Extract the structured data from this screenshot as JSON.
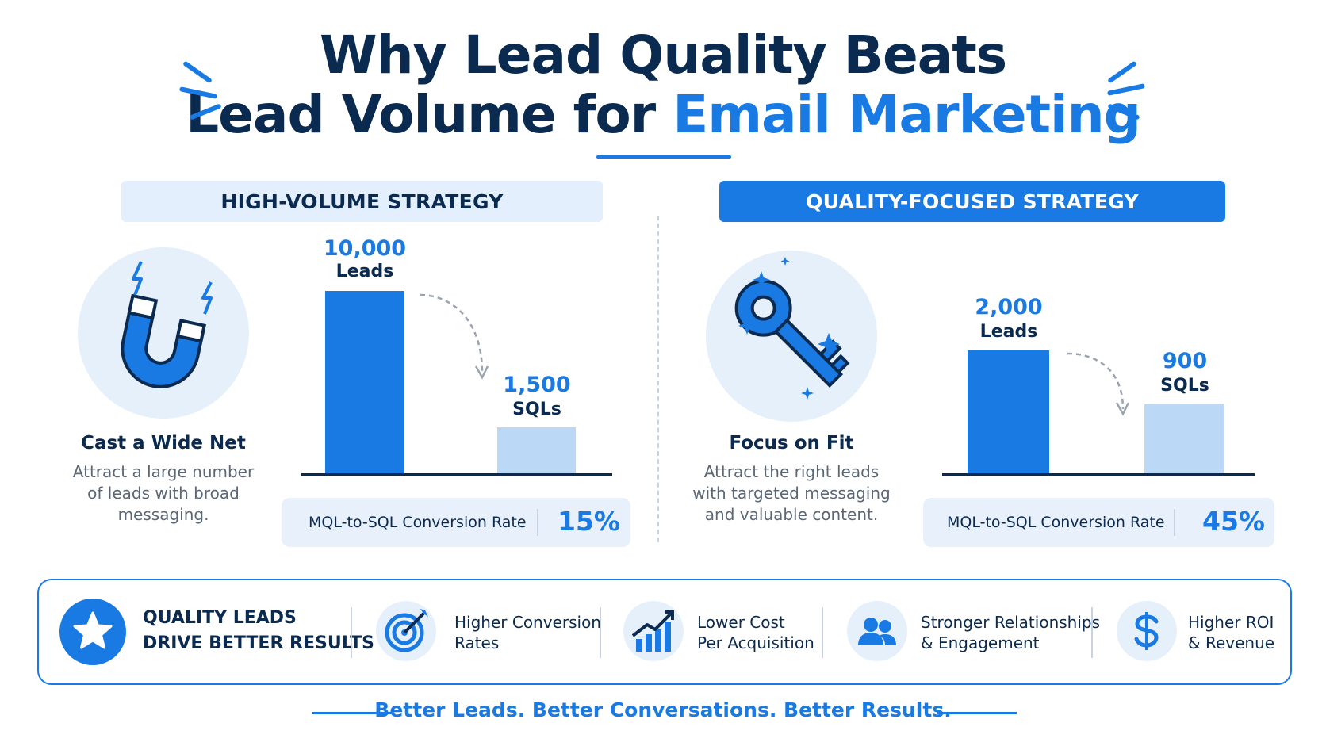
{
  "title": {
    "line1": "Why Lead Quality Beats",
    "line2_prefix": "Lead Volume for ",
    "line2_accent": "Email Marketing"
  },
  "high_volume": {
    "header": "HIGH-VOLUME STRATEGY",
    "icon": "magnet-icon",
    "feature_title": "Cast a Wide Net",
    "feature_desc": [
      "Attract a large number",
      "of leads with broad",
      "messaging."
    ],
    "leads_value": "10,000",
    "leads_label": "Leads",
    "sqls_value": "1,500",
    "sqls_label": "SQLs",
    "conversion_label": "MQL-to-SQL Conversion Rate",
    "conversion_value": "15%"
  },
  "quality_focused": {
    "header": "QUALITY-FOCUSED STRATEGY",
    "icon": "key-icon",
    "feature_title": "Focus on Fit",
    "feature_desc": [
      "Attract the right leads",
      "with targeted messaging",
      "and valuable content."
    ],
    "leads_value": "2,000",
    "leads_label": "Leads",
    "sqls_value": "900",
    "sqls_label": "SQLs",
    "conversion_label": "MQL-to-SQL Conversion Rate",
    "conversion_value": "45%"
  },
  "banner": {
    "main_line1": "QUALITY LEADS",
    "main_line2": "DRIVE BETTER RESULTS",
    "main_icon": "star-icon",
    "items": [
      {
        "icon": "target-icon",
        "line1": "Higher Conversion",
        "line2": "Rates"
      },
      {
        "icon": "growth-chart-icon",
        "line1": "Lower Cost",
        "line2": "Per Acquisition"
      },
      {
        "icon": "people-icon",
        "line1": "Stronger Relationships",
        "line2": "& Engagement"
      },
      {
        "icon": "dollar-icon",
        "line1": "Higher ROI",
        "line2": "& Revenue"
      }
    ]
  },
  "tagline": "Better Leads. Better Conversations. Better Results.",
  "colors": {
    "accent": "#1a7ae3",
    "navy": "#0b2a4f",
    "light": "#e3effc"
  }
}
